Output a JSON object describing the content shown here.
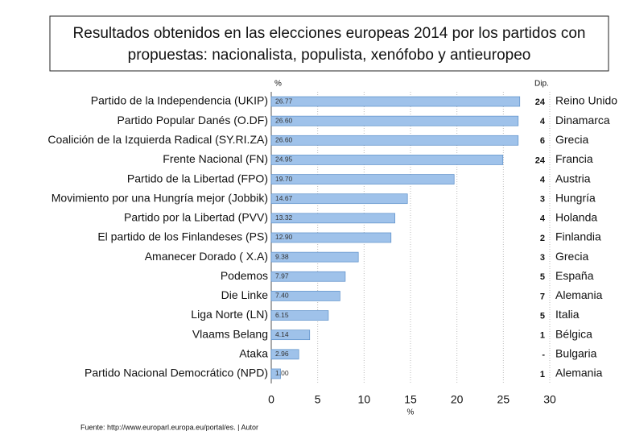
{
  "chart_data": {
    "type": "bar",
    "orientation": "horizontal",
    "title_lines": [
      "Resultados obtenidos en las elecciones europeas 2014  por los partidos con",
      "propuestas: nacionalista, populista, xenófobo y antieuropeo"
    ],
    "categories": [
      "Partido de la Independencia (UKIP)",
      "Partido Popular Danés  (O.DF)",
      "Coalición de la Izquierda Radical (SY.RI.ZA)",
      "Frente Nacional (FN)",
      "Partido de la Libertad (FPO)",
      "Movimiento por una Hungría mejor (Jobbik)",
      "Partido por la Libertad (PVV)",
      "El partido de los Finlandeses (PS)",
      "Amanecer Dorado ( X.A)",
      "Podemos",
      "Die Linke",
      "Liga Norte (LN)",
      "Vlaams Belang",
      "Ataka",
      "Partido Nacional Democrático (NPD)"
    ],
    "values": [
      26.77,
      26.6,
      26.6,
      24.95,
      19.7,
      14.67,
      13.32,
      12.9,
      9.38,
      7.97,
      7.4,
      6.15,
      4.14,
      2.96,
      1
    ],
    "value_labels": [
      "26.77",
      "26.60",
      "26.60",
      "24.95",
      "19.70",
      "14.67",
      "13.32",
      "12.90",
      "9.38",
      "7.97",
      "7.40",
      "6.15",
      "4.14",
      "2.96",
      "1.00"
    ],
    "color": "#9fc2ea",
    "value_header": "%",
    "seats_header": "Dip.",
    "seats": [
      24,
      4,
      6,
      24,
      4,
      3,
      4,
      2,
      3,
      5,
      7,
      5,
      1,
      "-",
      1
    ],
    "countries": [
      "Reino Unido",
      "Dinamarca",
      "Grecia",
      "Francia",
      "Austria",
      "Hungría",
      "Holanda",
      "Finlandia",
      "Grecia",
      "España",
      "Alemania",
      "Italia",
      "Bélgica",
      "Bulgaria",
      "Alemania"
    ],
    "xlim": [
      0,
      30
    ],
    "xticks": [
      0,
      5,
      10,
      15,
      20,
      25,
      30
    ],
    "xlabel": "%",
    "grid": true,
    "source": "Fuente: http://www.europarl.europa.eu/portal/es. | Autor"
  }
}
